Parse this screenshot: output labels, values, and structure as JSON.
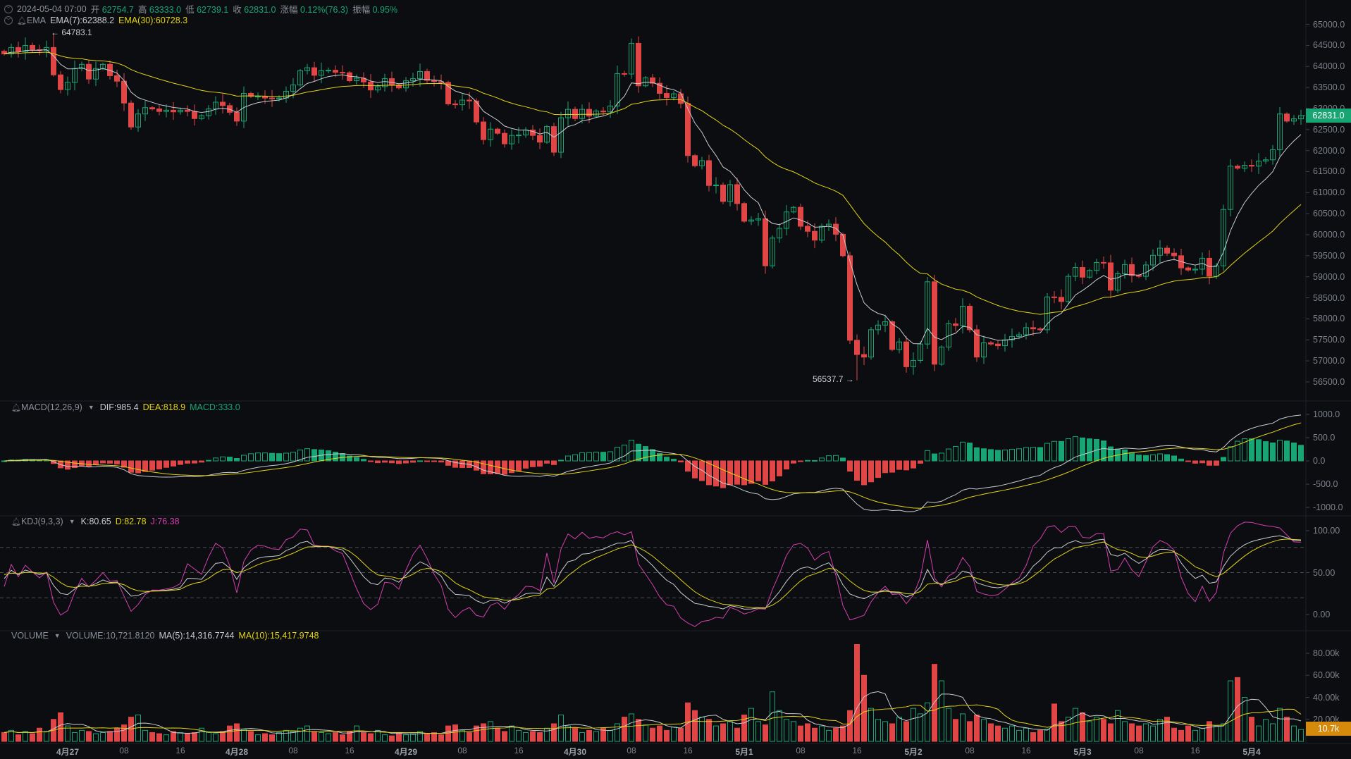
{
  "header": {
    "datetime": "2024-05-04 07:00",
    "open_label": "开",
    "open": "62754.7",
    "high_label": "高",
    "high": "63333.0",
    "low_label": "低",
    "low": "62739.1",
    "close_label": "收",
    "close": "62831.0",
    "change_label": "涨幅",
    "change": "0.12%(76.3)",
    "amplitude_label": "振幅",
    "amplitude": "0.95%"
  },
  "ema": {
    "name": "EMA",
    "ema7": "EMA(7):62388.2",
    "ema30": "EMA(30):60728.3"
  },
  "markers": {
    "max": {
      "label": "← 64783.1",
      "value": 64783.1,
      "candle_index": 7
    },
    "min": {
      "label": "56537.7 →",
      "value": 56537.7,
      "candle_index": 121
    }
  },
  "price_axis": {
    "ticks": [
      "65000.0",
      "64500.0",
      "64000.0",
      "63500.0",
      "63000.0",
      "62500.0",
      "62000.0",
      "61500.0",
      "61000.0",
      "60500.0",
      "60000.0",
      "59500.0",
      "59000.0",
      "58500.0",
      "58000.0",
      "57500.0",
      "57000.0",
      "56500.0"
    ],
    "current": "62831.0"
  },
  "macd": {
    "name": "MACD(12,26,9)",
    "dif": "DIF:985.4",
    "dea": "DEA:818.9",
    "macd": "MACD:333.0",
    "ticks": [
      "1000.0",
      "500.0",
      "0.0",
      "-500.0",
      "-1000.0"
    ]
  },
  "kdj": {
    "name": "KDJ(9,3,3)",
    "k": "K:80.65",
    "d": "D:82.78",
    "j": "J:76.38",
    "ticks": [
      "100.00",
      "50.00",
      "0.00"
    ]
  },
  "volume": {
    "name": "VOLUME",
    "vol": "VOLUME:10,721.8120",
    "ma5": "MA(5):14,316.7744",
    "ma10": "MA(10):15,417.9748",
    "ticks": [
      "80.00k",
      "60.00k",
      "40.00k",
      "20.00k"
    ],
    "current": "10.7k"
  },
  "time_axis": [
    "4月27",
    "08",
    "16",
    "4月28",
    "08",
    "16",
    "4月29",
    "08",
    "16",
    "4月30",
    "08",
    "16",
    "5月1",
    "08",
    "16",
    "5月2",
    "08",
    "16",
    "5月3",
    "08",
    "16",
    "5月4"
  ],
  "colors": {
    "up": "#17a673",
    "down": "#e04646",
    "ema7": "#c8ccd2",
    "ema30": "#e2d414",
    "j": "#d63fb0",
    "price_tag": "#17a673",
    "volume_tag": "#d58a0c",
    "background": "#0c0d10"
  },
  "chart_data": {
    "type": "candlestick",
    "close": [
      64300,
      64450,
      64350,
      64500,
      64400,
      64380,
      64450,
      63800,
      63450,
      63620,
      63950,
      64050,
      63700,
      63950,
      64050,
      63780,
      63650,
      63130,
      62560,
      62870,
      63020,
      62990,
      62930,
      62960,
      62920,
      62960,
      62930,
      62760,
      62830,
      62990,
      63150,
      63070,
      62910,
      62700,
      63360,
      63290,
      63290,
      63250,
      63230,
      63250,
      63410,
      63560,
      63900,
      63970,
      63790,
      63900,
      63910,
      63860,
      63850,
      63660,
      63720,
      63630,
      63440,
      63520,
      63710,
      63560,
      63490,
      63660,
      63710,
      63880,
      63670,
      63640,
      63620,
      63110,
      63090,
      63200,
      63180,
      62680,
      62260,
      62510,
      62410,
      62160,
      62360,
      62370,
      62490,
      62360,
      62200,
      62570,
      61960,
      62780,
      62980,
      62760,
      62980,
      62820,
      62940,
      62920,
      63060,
      63830,
      63820,
      64550,
      63540,
      63730,
      63600,
      63360,
      63260,
      63350,
      63120,
      61880,
      61640,
      61760,
      61170,
      61180,
      60790,
      61190,
      60740,
      60320,
      60350,
      60380,
      59260,
      59920,
      60150,
      60540,
      60650,
      60200,
      60080,
      59870,
      60200,
      60250,
      60010,
      59500,
      57490,
      57150,
      57090,
      57740,
      57850,
      57930,
      57270,
      57450,
      56860,
      57010,
      57400,
      58880,
      56920,
      57330,
      57880,
      57840,
      58300,
      57740,
      57090,
      57430,
      57400,
      57360,
      57500,
      57580,
      57620,
      57790,
      57760,
      57740,
      58520,
      58510,
      58410,
      59010,
      59220,
      58990,
      59150,
      59340,
      59330,
      58680,
      59070,
      59290,
      59030,
      59010,
      59280,
      59510,
      59680,
      59560,
      59500,
      59210,
      59160,
      59180,
      59440,
      59010,
      59260,
      60600,
      61630,
      61580,
      61650,
      61630,
      61750,
      61780,
      62020,
      62870,
      62700,
      62754.7,
      62831.0
    ],
    "volume_k": [
      8,
      10,
      6,
      9,
      7,
      12,
      9,
      20,
      26,
      14,
      8,
      10,
      9,
      7,
      8,
      9,
      12,
      15,
      22,
      24,
      10,
      8,
      7,
      6,
      9,
      8,
      7,
      8,
      12,
      8,
      7,
      9,
      14,
      16,
      11,
      9,
      6,
      7,
      6,
      8,
      10,
      9,
      12,
      14,
      9,
      8,
      7,
      8,
      6,
      9,
      14,
      8,
      7,
      10,
      6,
      5,
      8,
      6,
      7,
      9,
      7,
      8,
      6,
      14,
      15,
      10,
      8,
      14,
      16,
      18,
      12,
      9,
      14,
      10,
      8,
      9,
      8,
      12,
      16,
      24,
      14,
      12,
      8,
      10,
      9,
      12,
      10,
      16,
      22,
      25,
      20,
      15,
      12,
      14,
      10,
      13,
      12,
      35,
      28,
      22,
      20,
      14,
      16,
      18,
      12,
      24,
      30,
      18,
      15,
      45,
      28,
      20,
      18,
      14,
      16,
      12,
      14,
      10,
      12,
      14,
      28,
      88,
      60,
      30,
      20,
      18,
      16,
      22,
      18,
      30,
      25,
      35,
      70,
      55,
      30,
      20,
      25,
      18,
      24,
      20,
      16,
      14,
      12,
      14,
      10,
      12,
      8,
      10,
      11,
      34,
      18,
      22,
      30,
      26,
      18,
      22,
      20,
      16,
      28,
      18,
      16,
      14,
      16,
      14,
      20,
      22,
      12,
      10,
      14,
      10,
      12,
      18,
      14,
      16,
      55,
      58,
      40,
      22,
      14,
      20,
      16,
      30,
      22,
      14,
      10.7
    ]
  }
}
